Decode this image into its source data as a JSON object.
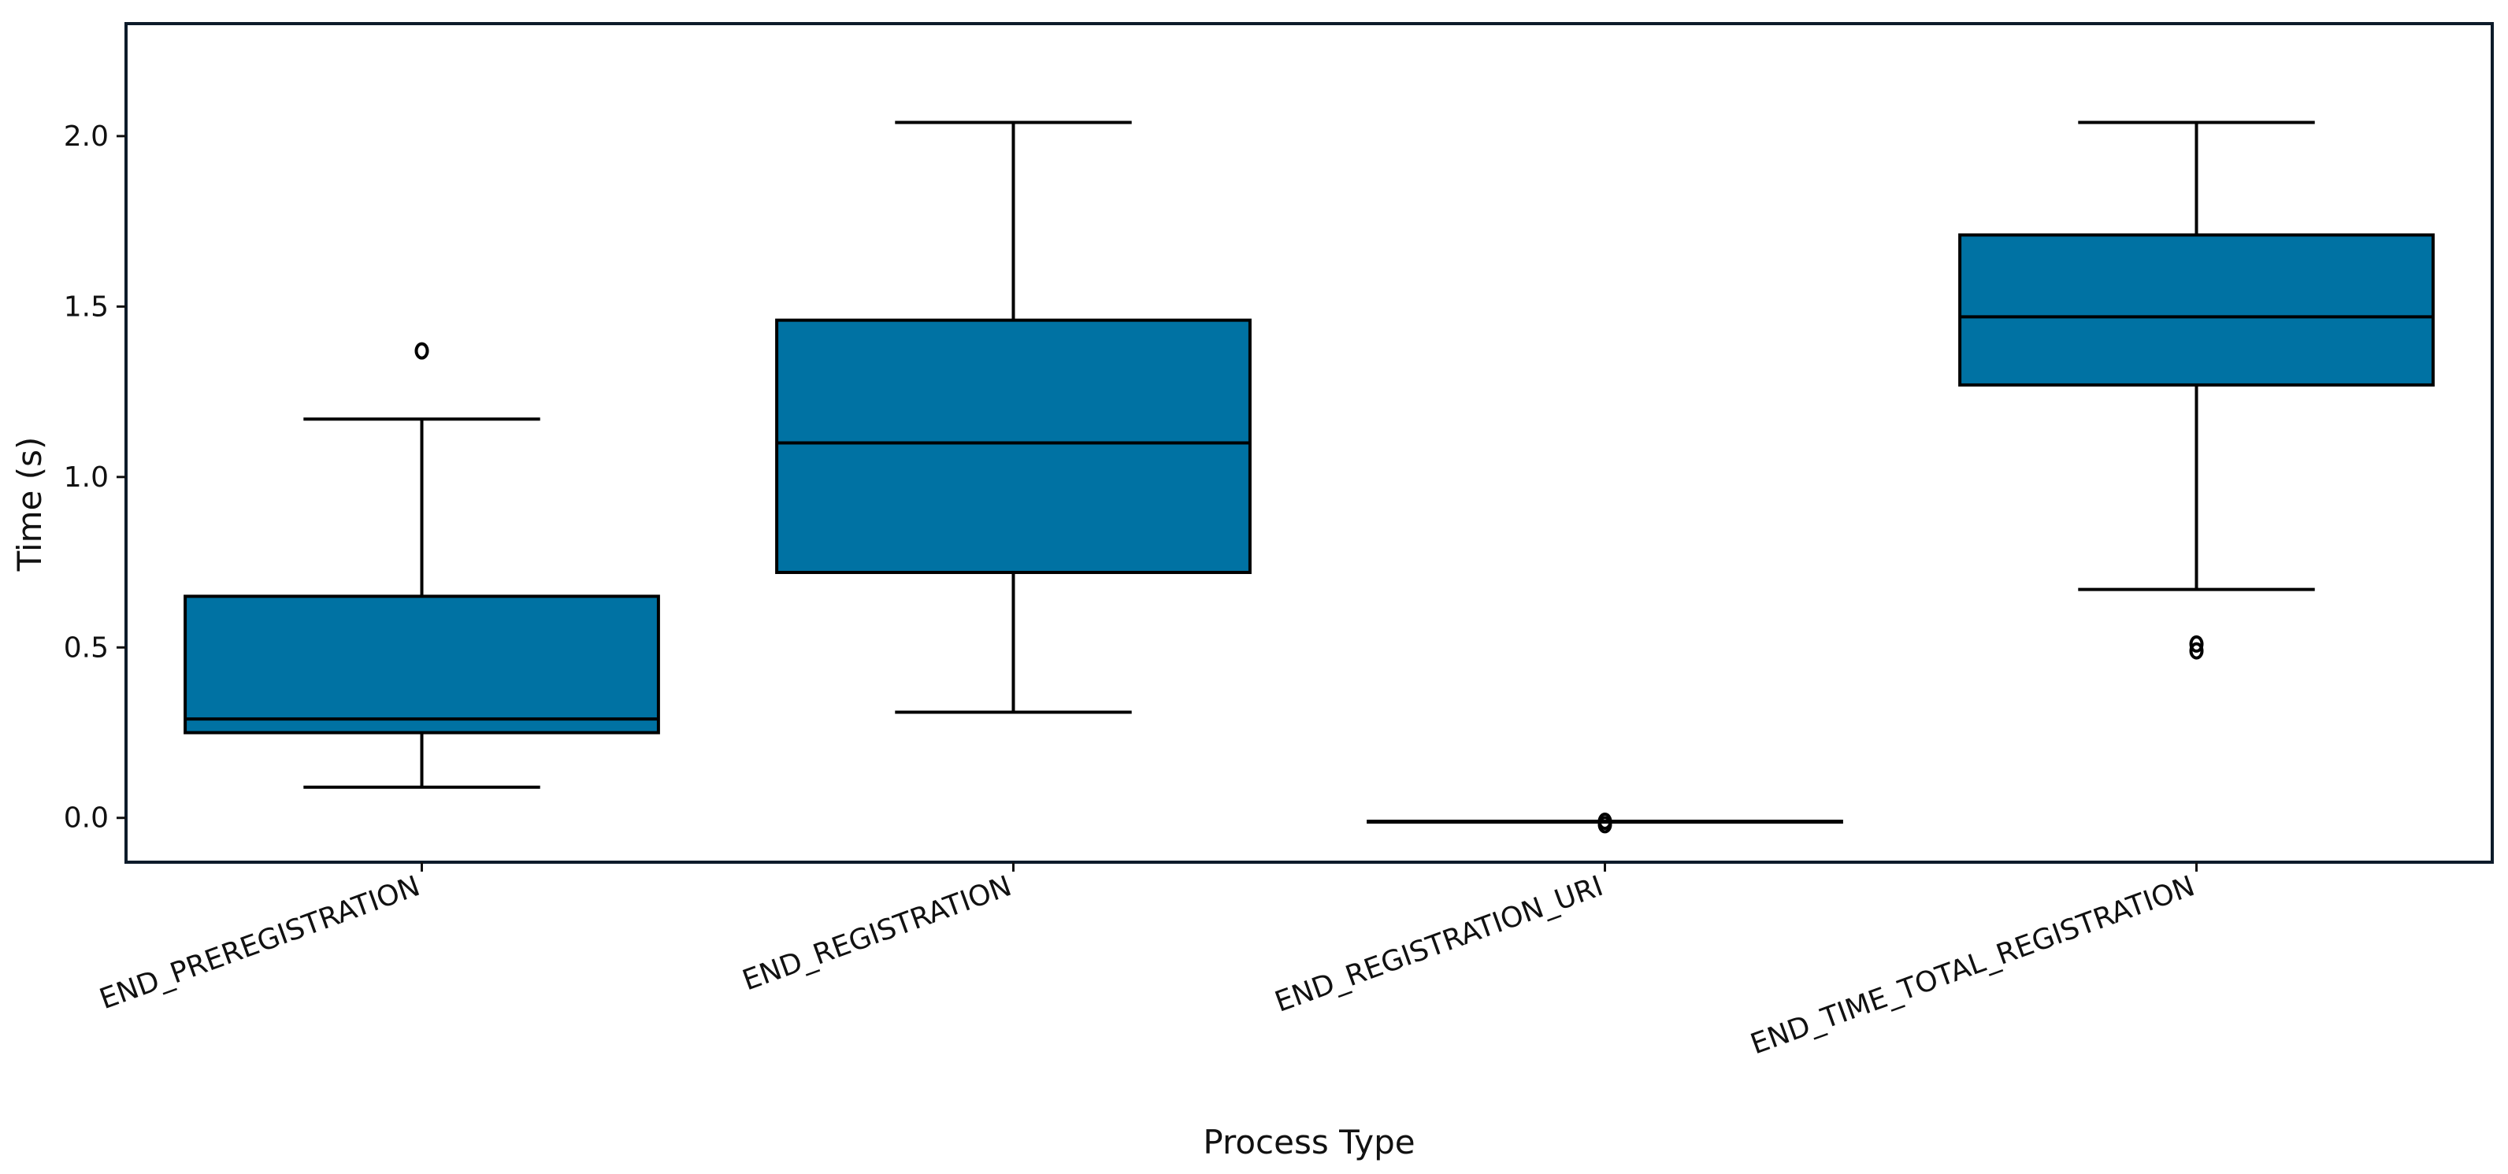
{
  "chart_data": {
    "type": "box",
    "xlabel": "Process Type",
    "ylabel": "Time (s)",
    "ylim": [
      -0.13,
      2.33
    ],
    "yticks": [
      0.0,
      0.5,
      1.0,
      1.5,
      2.0
    ],
    "ytick_labels": [
      "0.0",
      "0.5",
      "1.0",
      "1.5",
      "2.0"
    ],
    "categories": [
      "END_PREREGISTRATION",
      "END_REGISTRATION",
      "END_REGISTRATION_URI",
      "END_TIME_TOTAL_REGISTRATION"
    ],
    "boxes": [
      {
        "category": "END_PREREGISTRATION",
        "whisker_low": 0.09,
        "q1": 0.25,
        "median": 0.29,
        "q3": 0.65,
        "whisker_high": 1.17,
        "outliers": [
          1.37
        ]
      },
      {
        "category": "END_REGISTRATION",
        "whisker_low": 0.31,
        "q1": 0.72,
        "median": 1.1,
        "q3": 1.46,
        "whisker_high": 2.04,
        "outliers": []
      },
      {
        "category": "END_REGISTRATION_URI",
        "whisker_low": -0.01,
        "q1": -0.01,
        "median": -0.01,
        "q3": -0.01,
        "whisker_high": -0.01,
        "outliers": [
          -0.01,
          -0.02
        ]
      },
      {
        "category": "END_TIME_TOTAL_REGISTRATION",
        "whisker_low": 0.67,
        "q1": 1.27,
        "median": 1.47,
        "q3": 1.71,
        "whisker_high": 2.04,
        "outliers": [
          0.51,
          0.49
        ]
      }
    ],
    "box_color": "#0072a3",
    "line_color": "#000000",
    "grid": false,
    "legend": "none"
  }
}
